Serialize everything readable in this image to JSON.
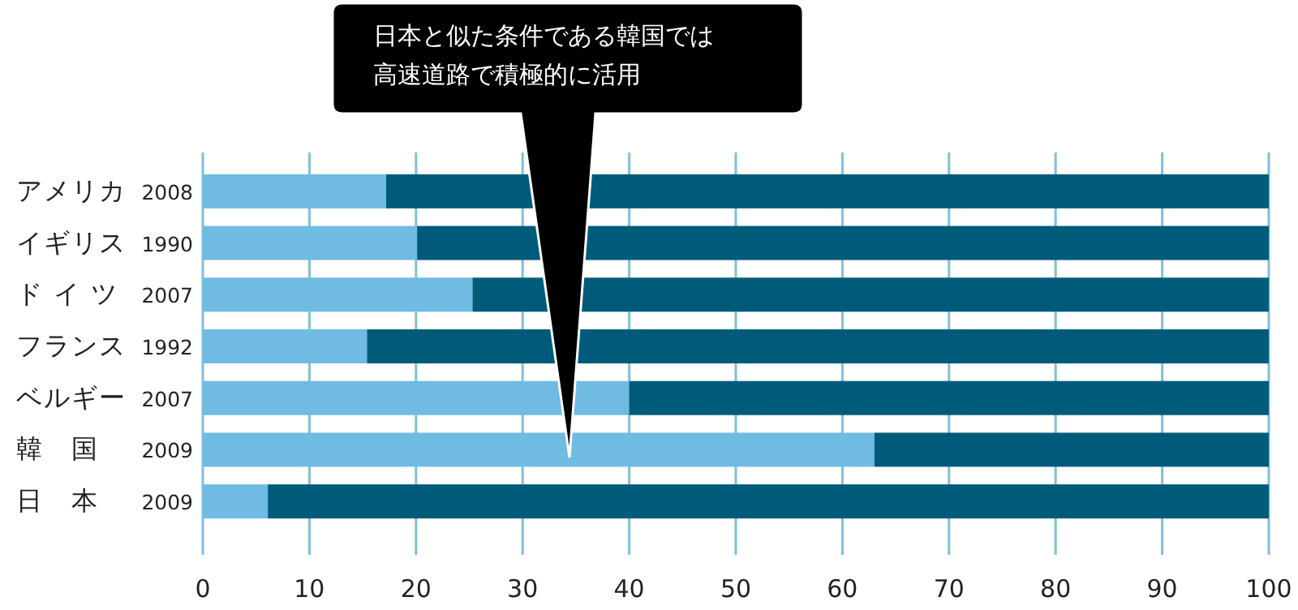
{
  "chart_data": {
    "type": "bar",
    "orientation": "horizontal",
    "stacked": true,
    "categories": [
      "アメリカ 2008",
      "イギリス 1990",
      "ド イ ツ 2007",
      "フランス 1992",
      "ベルギー 2007",
      "韓　国 2009",
      "日　本 2009"
    ],
    "series": [
      {
        "color": "#6fbbe2",
        "values": [
          17.2,
          20.1,
          25.3,
          15.4,
          40,
          63,
          6.1
        ]
      },
      {
        "color": "#005b7b",
        "values": [
          82.8,
          79.9,
          74.7,
          84.6,
          60,
          37,
          93.9
        ]
      }
    ],
    "xlim": [
      0,
      100
    ],
    "xticks": [
      0,
      10,
      20,
      30,
      40,
      50,
      60,
      70,
      80,
      90,
      100
    ],
    "grid": "x",
    "annotations": [
      "日本と似た条件である韓国では",
      "高速道路で積極的に活用"
    ]
  }
}
